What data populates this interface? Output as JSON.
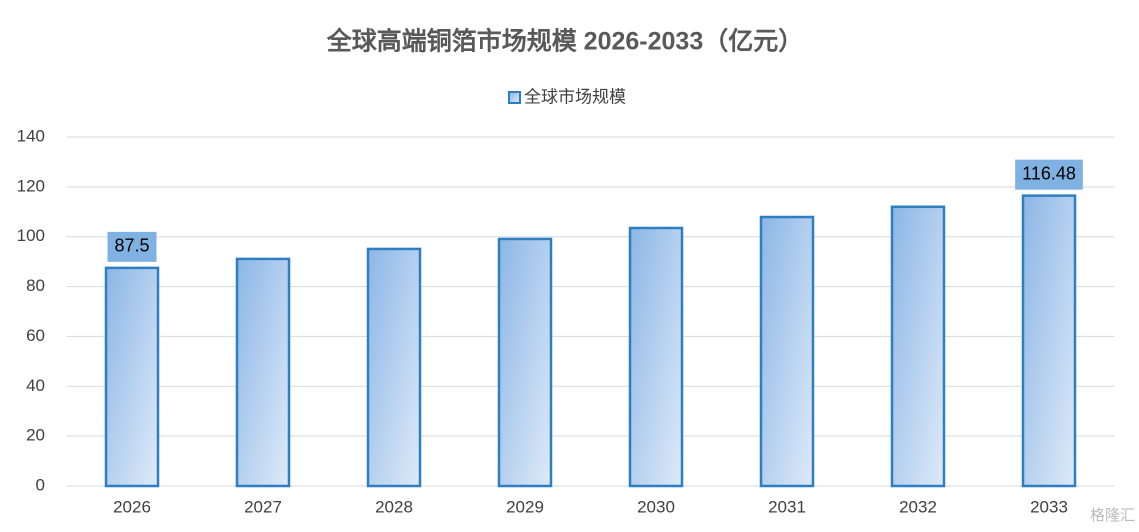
{
  "chart_data": {
    "type": "bar",
    "title": "全球高端铜箔市场规模 2026-2033（亿元）",
    "categories": [
      "2026",
      "2027",
      "2028",
      "2029",
      "2030",
      "2031",
      "2032",
      "2033"
    ],
    "series": [
      {
        "name": "全球市场规模",
        "color": "#2e7fc1",
        "values": [
          87.5,
          91.1,
          95.1,
          99.1,
          103.5,
          107.9,
          112.0,
          116.48
        ],
        "value_labels": [
          "87.5",
          null,
          null,
          null,
          null,
          null,
          null,
          "116.48"
        ]
      }
    ],
    "ylim": [
      0,
      140
    ],
    "yticks": [
      0,
      20,
      40,
      60,
      80,
      100,
      120,
      140
    ],
    "grid": true,
    "legend": "top",
    "watermark": "格隆汇"
  }
}
